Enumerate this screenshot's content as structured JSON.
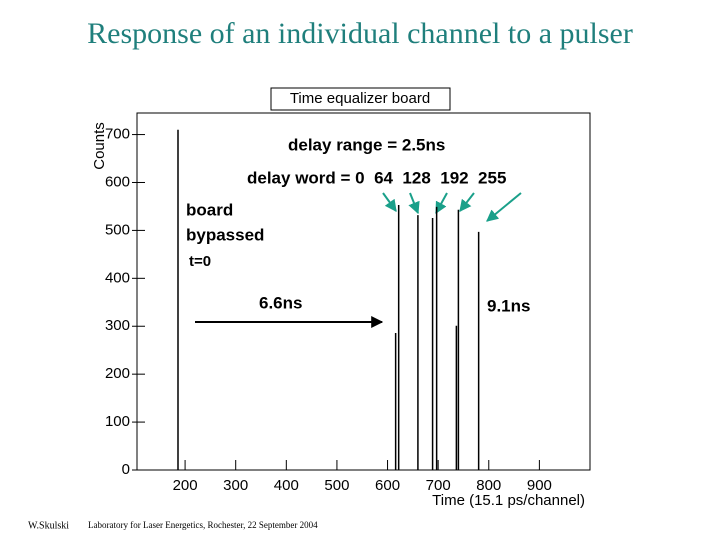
{
  "chart_data": {
    "type": "spike",
    "title": "Response of an individual channel to a pulser",
    "stats_box": "Time equalizer board",
    "x_label": "Time (15.1 ps/channel)",
    "y_label": "Counts",
    "annotations": [
      "delay range = 2.5ns",
      "delay word = 0  64  128  192  255",
      "board",
      "bypassed",
      "t=0",
      "6.6ns",
      "9.1ns"
    ],
    "footer": [
      "W.Skulski",
      "Laboratory for Laser Energetics,  Rochester,  22 September 2004"
    ],
    "x": [
      186,
      616,
      622,
      660,
      689,
      697,
      736,
      740,
      780
    ],
    "values": [
      710,
      286,
      553,
      532,
      526,
      549,
      301,
      543,
      497
    ],
    "color": "#000000",
    "xlim": [
      105,
      1000
    ],
    "xticks": [
      200,
      300,
      400,
      500,
      600,
      700,
      800,
      900
    ],
    "ylim": [
      0,
      745
    ],
    "yticks": [
      0,
      100,
      200,
      300,
      400,
      500,
      600,
      700
    ]
  }
}
